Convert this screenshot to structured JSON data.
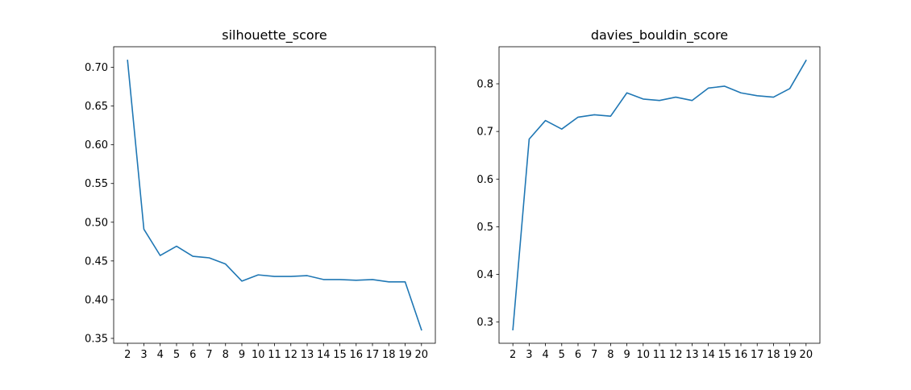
{
  "chart_data": [
    {
      "type": "line",
      "title": "silhouette_score",
      "xlabel": "",
      "ylabel": "",
      "x": [
        2,
        3,
        4,
        5,
        6,
        7,
        8,
        9,
        10,
        11,
        12,
        13,
        14,
        15,
        16,
        17,
        18,
        19,
        20
      ],
      "series": [
        {
          "values": [
            0.709,
            0.491,
            0.457,
            0.469,
            0.456,
            0.454,
            0.446,
            0.424,
            0.432,
            0.43,
            0.43,
            0.431,
            0.426,
            0.426,
            0.425,
            0.426,
            0.423,
            0.423,
            0.361
          ],
          "color": "#1f77b4"
        }
      ],
      "xticks": [
        2,
        3,
        4,
        5,
        6,
        7,
        8,
        9,
        10,
        11,
        12,
        13,
        14,
        15,
        16,
        17,
        18,
        19,
        20
      ],
      "yticks": [
        0.35,
        0.4,
        0.45,
        0.5,
        0.55,
        0.6,
        0.65,
        0.7
      ],
      "ytick_labels": [
        "0.35",
        "0.40",
        "0.45",
        "0.50",
        "0.55",
        "0.60",
        "0.65",
        "0.70"
      ],
      "xlim": [
        1.15,
        20.85
      ],
      "ylim": [
        0.3437,
        0.7266
      ],
      "grid": false,
      "legend": "none"
    },
    {
      "type": "line",
      "title": "davies_bouldin_score",
      "xlabel": "",
      "ylabel": "",
      "x": [
        2,
        3,
        4,
        5,
        6,
        7,
        8,
        9,
        10,
        11,
        12,
        13,
        14,
        15,
        16,
        17,
        18,
        19,
        20
      ],
      "series": [
        {
          "values": [
            0.284,
            0.684,
            0.723,
            0.705,
            0.73,
            0.735,
            0.732,
            0.781,
            0.768,
            0.765,
            0.772,
            0.765,
            0.791,
            0.795,
            0.781,
            0.775,
            0.772,
            0.79,
            0.849
          ],
          "color": "#1f77b4"
        }
      ],
      "xticks": [
        2,
        3,
        4,
        5,
        6,
        7,
        8,
        9,
        10,
        11,
        12,
        13,
        14,
        15,
        16,
        17,
        18,
        19,
        20
      ],
      "yticks": [
        0.3,
        0.4,
        0.5,
        0.6,
        0.7,
        0.8
      ],
      "ytick_labels": [
        "0.3",
        "0.4",
        "0.5",
        "0.6",
        "0.7",
        "0.8"
      ],
      "xlim": [
        1.15,
        20.85
      ],
      "ylim": [
        0.2555,
        0.8778
      ],
      "grid": false,
      "legend": "none"
    }
  ]
}
